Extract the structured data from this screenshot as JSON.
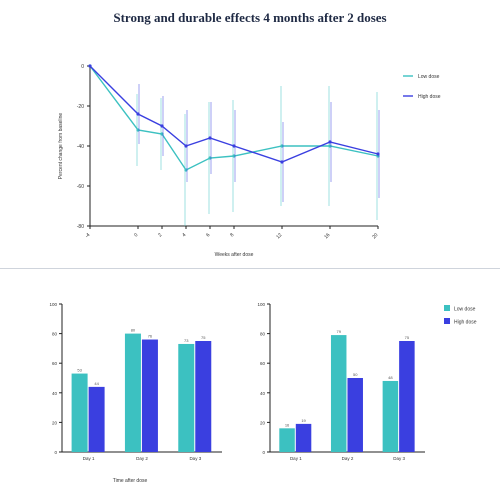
{
  "title": "Strong and durable effects 4 months after 2 doses",
  "colors": {
    "series_a": "#3cc1c1",
    "series_b": "#3a3fe0"
  },
  "chart_data": [
    {
      "type": "line",
      "xlabel": "Weeks after dose",
      "ylabel": "Percent change from baseline",
      "x_tick_labels": [
        "-4",
        "0",
        "2",
        "4",
        "6",
        "8",
        "12",
        "16",
        "20"
      ],
      "x": [
        -4,
        0,
        2,
        4,
        6,
        8,
        12,
        16,
        20
      ],
      "y_ticks": [
        -80,
        -60,
        -40,
        -20,
        0
      ],
      "ylim": [
        -80,
        0
      ],
      "series": [
        {
          "name": "Low dose",
          "values": [
            0,
            -32,
            -34,
            -52,
            -46,
            -45,
            -40,
            -40,
            -45
          ],
          "err": [
            0,
            18,
            18,
            28,
            28,
            28,
            30,
            30,
            32
          ]
        },
        {
          "name": "High dose",
          "values": [
            0,
            -24,
            -30,
            -40,
            -36,
            -40,
            -48,
            -38,
            -44
          ],
          "err": [
            0,
            15,
            15,
            18,
            18,
            18,
            20,
            20,
            22
          ]
        }
      ],
      "legend_position": "top-right"
    },
    {
      "type": "bar",
      "title": "",
      "categories": [
        "Day 1",
        "Day 2",
        "Day 3"
      ],
      "ylabel": "",
      "y_ticks": [
        0,
        20,
        40,
        60,
        80,
        100
      ],
      "ylim": [
        0,
        100
      ],
      "series": [
        {
          "name": "Low dose",
          "values": [
            53,
            80,
            73
          ]
        },
        {
          "name": "High dose",
          "values": [
            44,
            76,
            75
          ]
        }
      ],
      "data_labels": [
        "53",
        "80",
        "73",
        "44",
        "76",
        "75"
      ]
    },
    {
      "type": "bar",
      "title": "",
      "categories": [
        "Day 1",
        "Day 2",
        "Day 3"
      ],
      "ylabel": "",
      "y_ticks": [
        0,
        20,
        40,
        60,
        80,
        100
      ],
      "ylim": [
        0,
        100
      ],
      "series": [
        {
          "name": "Low dose",
          "values": [
            16,
            79,
            48
          ]
        },
        {
          "name": "High dose",
          "values": [
            19,
            50,
            75
          ]
        }
      ],
      "data_labels": [
        "16",
        "79",
        "48",
        "19",
        "50",
        "75"
      ],
      "legend_position": "top-right"
    }
  ],
  "bottom_xlabel": "Time after dose"
}
